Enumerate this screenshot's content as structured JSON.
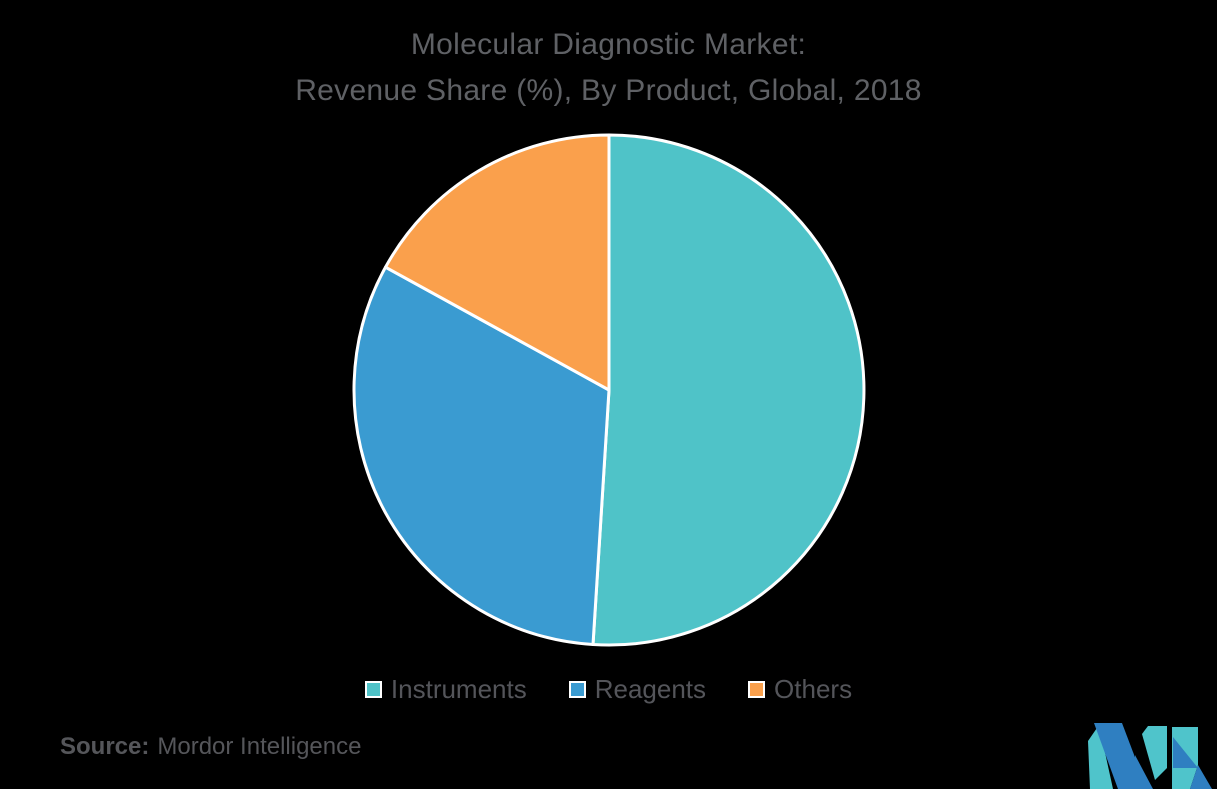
{
  "title": {
    "line1": "Molecular Diagnostic Market:",
    "line2": "Revenue Share (%), By Product, Global, 2018"
  },
  "chart_data": {
    "type": "pie",
    "title": "Molecular Diagnostic Market: Revenue Share (%), By Product, Global, 2018",
    "labels": [
      "Instruments",
      "Reagents",
      "Others"
    ],
    "values": [
      51,
      32,
      17
    ],
    "unit": "%",
    "colors": [
      "#4FC3C8",
      "#3A9BD1",
      "#FAA04C"
    ],
    "start_angle_deg": 0,
    "direction": "clockwise",
    "slice_border_color": "#FFFFFF",
    "slice_border_width": 3,
    "data_labels": "none",
    "legend_position": "bottom"
  },
  "source": {
    "label": "Source:",
    "text": "Mordor Intelligence"
  },
  "brand": {
    "logo_blue": "#2F7FC1",
    "logo_teal": "#4FC4CB"
  },
  "colors": {
    "background": "#000000",
    "title_text": "#5F6165",
    "legend_text": "#54555A",
    "source_text": "#55565A"
  }
}
